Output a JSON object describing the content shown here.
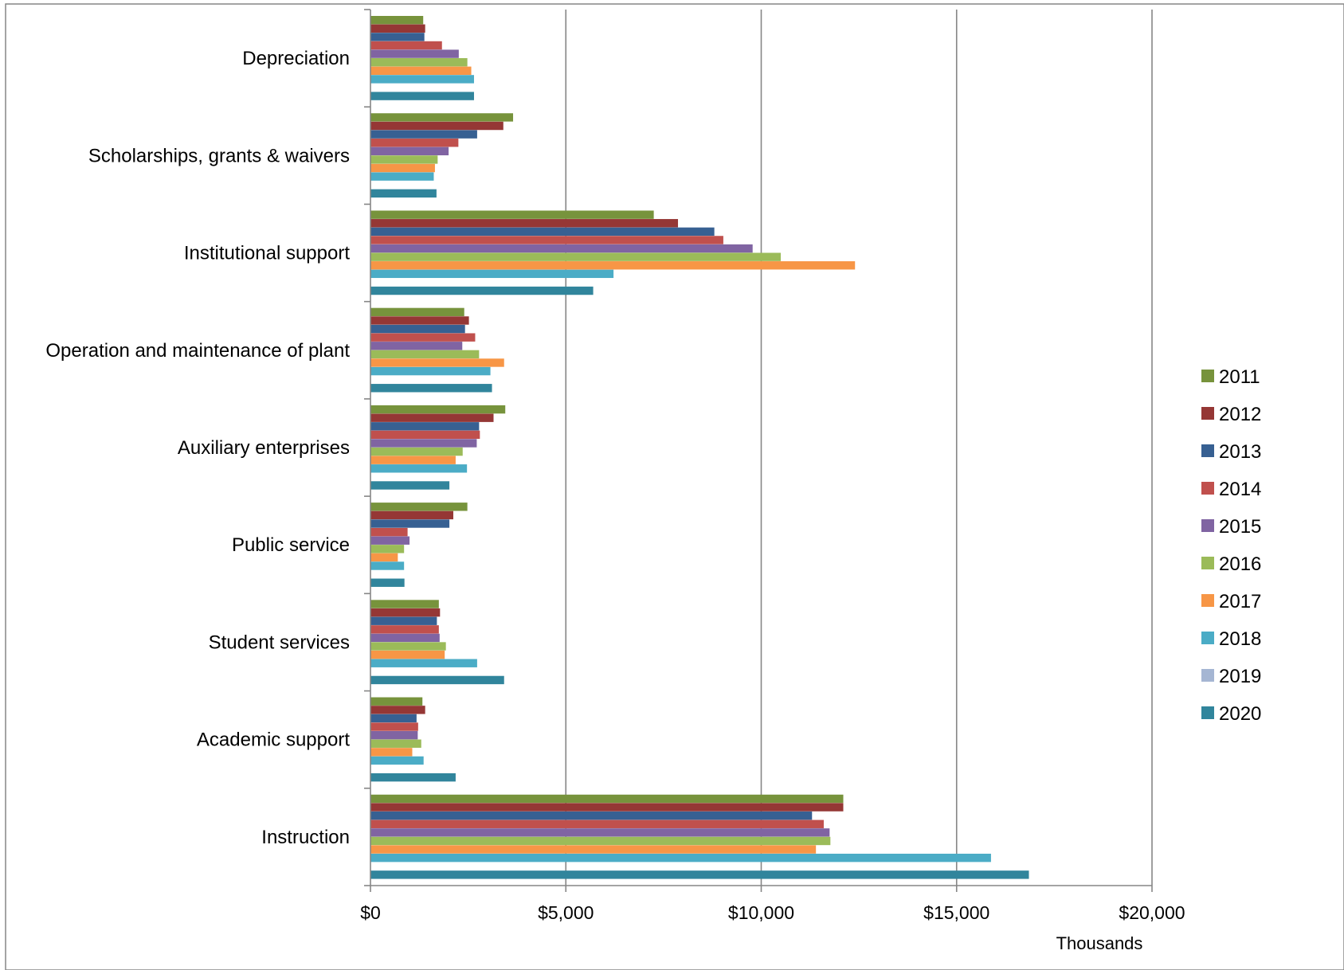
{
  "chart_data": {
    "type": "bar",
    "orientation": "horizontal",
    "categories": [
      "Depreciation",
      "Scholarships, grants & waivers",
      "Institutional support",
      "Operation and maintenance of plant",
      "Auxiliary enterprises",
      "Public service",
      "Student services",
      "Academic support",
      "Instruction"
    ],
    "series": [
      {
        "name": "2011",
        "color": "#77933c",
        "values": [
          1350,
          3650,
          7250,
          2400,
          3450,
          2480,
          1750,
          1330,
          12100
        ]
      },
      {
        "name": "2012",
        "color": "#953735",
        "values": [
          1400,
          3400,
          7870,
          2520,
          3150,
          2120,
          1780,
          1400,
          12100
        ]
      },
      {
        "name": "2013",
        "color": "#376092",
        "values": [
          1380,
          2730,
          8800,
          2420,
          2780,
          2020,
          1700,
          1180,
          11300
        ]
      },
      {
        "name": "2014",
        "color": "#c0504d",
        "values": [
          1830,
          2250,
          9030,
          2680,
          2800,
          950,
          1750,
          1220,
          11600
        ]
      },
      {
        "name": "2015",
        "color": "#8064a2",
        "values": [
          2260,
          2000,
          9780,
          2350,
          2720,
          1000,
          1770,
          1210,
          11750
        ]
      },
      {
        "name": "2016",
        "color": "#9bbb59",
        "values": [
          2480,
          1720,
          10500,
          2780,
          2360,
          860,
          1930,
          1300,
          11770
        ]
      },
      {
        "name": "2017",
        "color": "#f79646",
        "values": [
          2580,
          1650,
          12400,
          3420,
          2180,
          700,
          1900,
          1070,
          11400
        ]
      },
      {
        "name": "2018",
        "color": "#4bacc6",
        "values": [
          2650,
          1620,
          6220,
          3070,
          2470,
          860,
          2730,
          1360,
          15880
        ]
      },
      {
        "name": "2019",
        "color": "#a5b6d3",
        "values": [
          0,
          0,
          0,
          0,
          0,
          0,
          0,
          0,
          0
        ]
      },
      {
        "name": "2020",
        "color": "#31859c",
        "values": [
          2650,
          1690,
          5700,
          3110,
          2020,
          870,
          3420,
          2180,
          16850
        ]
      }
    ],
    "xlim": [
      0,
      20000
    ],
    "xticks": [
      0,
      5000,
      10000,
      15000,
      20000
    ],
    "xtick_labels": [
      "$0",
      "$5,000",
      "$10,000",
      "$15,000",
      "$20,000"
    ],
    "xlabel": "Thousands",
    "grid": "vertical-major",
    "legend": "right"
  }
}
